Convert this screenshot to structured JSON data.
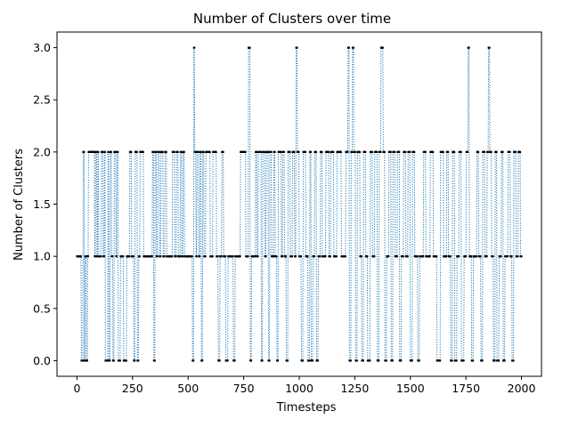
{
  "chart_data": {
    "type": "line",
    "title": "Number of Clusters over time",
    "xlabel": "Timesteps",
    "ylabel": "Number of Clusters",
    "xlim": [
      -90,
      2090
    ],
    "ylim": [
      -0.15,
      3.15
    ],
    "xticks": [
      0,
      250,
      500,
      750,
      1000,
      1250,
      1500,
      1750,
      2000
    ],
    "yticks": [
      0.0,
      0.5,
      1.0,
      1.5,
      2.0,
      2.5,
      3.0
    ],
    "ytick_labels": [
      "0.0",
      "0.5",
      "1.0",
      "1.5",
      "2.0",
      "2.5",
      "3.0"
    ],
    "line_style": "dotted",
    "line_color": "#1f77b4",
    "marker_color": "#000000",
    "grid": false,
    "series": [
      {
        "values_note": "cluster count per timestep, approximated from plot",
        "segments": [
          [
            0,
            20,
            1
          ],
          [
            20,
            28,
            0
          ],
          [
            28,
            33,
            2
          ],
          [
            33,
            37,
            0
          ],
          [
            37,
            42,
            1
          ],
          [
            42,
            48,
            0
          ],
          [
            48,
            52,
            1
          ],
          [
            52,
            80,
            2
          ],
          [
            80,
            84,
            1
          ],
          [
            84,
            90,
            2
          ],
          [
            90,
            94,
            1
          ],
          [
            94,
            98,
            2
          ],
          [
            98,
            110,
            1
          ],
          [
            110,
            118,
            2
          ],
          [
            118,
            124,
            1
          ],
          [
            124,
            128,
            2
          ],
          [
            128,
            140,
            0
          ],
          [
            140,
            144,
            2
          ],
          [
            144,
            150,
            0
          ],
          [
            150,
            156,
            2
          ],
          [
            156,
            162,
            1
          ],
          [
            162,
            168,
            0
          ],
          [
            168,
            176,
            2
          ],
          [
            176,
            180,
            1
          ],
          [
            180,
            186,
            2
          ],
          [
            186,
            196,
            0
          ],
          [
            196,
            210,
            1
          ],
          [
            210,
            224,
            0
          ],
          [
            224,
            238,
            1
          ],
          [
            238,
            246,
            2
          ],
          [
            246,
            256,
            1
          ],
          [
            256,
            262,
            0
          ],
          [
            262,
            272,
            2
          ],
          [
            272,
            278,
            0
          ],
          [
            278,
            284,
            1
          ],
          [
            284,
            300,
            2
          ],
          [
            300,
            340,
            1
          ],
          [
            340,
            346,
            2
          ],
          [
            346,
            352,
            0
          ],
          [
            352,
            358,
            2
          ],
          [
            358,
            364,
            1
          ],
          [
            364,
            372,
            2
          ],
          [
            372,
            378,
            1
          ],
          [
            378,
            388,
            2
          ],
          [
            388,
            396,
            1
          ],
          [
            396,
            404,
            2
          ],
          [
            404,
            430,
            1
          ],
          [
            430,
            440,
            2
          ],
          [
            440,
            448,
            1
          ],
          [
            448,
            456,
            2
          ],
          [
            456,
            466,
            1
          ],
          [
            466,
            472,
            2
          ],
          [
            472,
            478,
            1
          ],
          [
            478,
            484,
            2
          ],
          [
            484,
            490,
            1
          ],
          [
            490,
            520,
            1
          ],
          [
            520,
            526,
            0
          ],
          [
            526,
            530,
            3
          ],
          [
            530,
            536,
            2
          ],
          [
            536,
            540,
            1
          ],
          [
            540,
            548,
            2
          ],
          [
            548,
            554,
            1
          ],
          [
            554,
            560,
            2
          ],
          [
            560,
            566,
            0
          ],
          [
            566,
            572,
            2
          ],
          [
            572,
            580,
            1
          ],
          [
            580,
            600,
            2
          ],
          [
            600,
            612,
            1
          ],
          [
            612,
            628,
            2
          ],
          [
            628,
            636,
            1
          ],
          [
            636,
            644,
            0
          ],
          [
            644,
            652,
            1
          ],
          [
            652,
            660,
            2
          ],
          [
            660,
            670,
            1
          ],
          [
            670,
            680,
            0
          ],
          [
            680,
            704,
            1
          ],
          [
            704,
            712,
            0
          ],
          [
            712,
            736,
            1
          ],
          [
            736,
            760,
            2
          ],
          [
            760,
            772,
            1
          ],
          [
            772,
            780,
            3
          ],
          [
            780,
            786,
            0
          ],
          [
            786,
            804,
            1
          ],
          [
            804,
            810,
            2
          ],
          [
            810,
            816,
            1
          ],
          [
            816,
            830,
            2
          ],
          [
            830,
            836,
            0
          ],
          [
            836,
            846,
            2
          ],
          [
            846,
            852,
            1
          ],
          [
            852,
            862,
            2
          ],
          [
            862,
            868,
            0
          ],
          [
            868,
            876,
            2
          ],
          [
            876,
            886,
            1
          ],
          [
            886,
            892,
            2
          ],
          [
            892,
            900,
            1
          ],
          [
            900,
            906,
            0
          ],
          [
            906,
            920,
            2
          ],
          [
            920,
            926,
            1
          ],
          [
            926,
            934,
            2
          ],
          [
            934,
            942,
            1
          ],
          [
            942,
            950,
            0
          ],
          [
            950,
            960,
            2
          ],
          [
            960,
            970,
            1
          ],
          [
            970,
            980,
            2
          ],
          [
            980,
            986,
            1
          ],
          [
            986,
            992,
            3
          ],
          [
            992,
            1000,
            2
          ],
          [
            1000,
            1010,
            1
          ],
          [
            1010,
            1018,
            0
          ],
          [
            1018,
            1030,
            2
          ],
          [
            1030,
            1040,
            1
          ],
          [
            1040,
            1048,
            0
          ],
          [
            1048,
            1054,
            2
          ],
          [
            1054,
            1062,
            0
          ],
          [
            1062,
            1070,
            1
          ],
          [
            1070,
            1078,
            2
          ],
          [
            1078,
            1086,
            0
          ],
          [
            1086,
            1096,
            1
          ],
          [
            1096,
            1104,
            2
          ],
          [
            1104,
            1120,
            1
          ],
          [
            1120,
            1134,
            2
          ],
          [
            1134,
            1142,
            1
          ],
          [
            1142,
            1156,
            2
          ],
          [
            1156,
            1170,
            1
          ],
          [
            1170,
            1190,
            2
          ],
          [
            1190,
            1210,
            1
          ],
          [
            1210,
            1220,
            2
          ],
          [
            1220,
            1226,
            3
          ],
          [
            1226,
            1234,
            0
          ],
          [
            1234,
            1240,
            2
          ],
          [
            1240,
            1246,
            3
          ],
          [
            1246,
            1254,
            2
          ],
          [
            1254,
            1262,
            0
          ],
          [
            1262,
            1274,
            2
          ],
          [
            1274,
            1282,
            1
          ],
          [
            1282,
            1290,
            0
          ],
          [
            1290,
            1300,
            2
          ],
          [
            1300,
            1308,
            1
          ],
          [
            1308,
            1320,
            0
          ],
          [
            1320,
            1330,
            2
          ],
          [
            1330,
            1340,
            1
          ],
          [
            1340,
            1352,
            2
          ],
          [
            1352,
            1360,
            0
          ],
          [
            1360,
            1368,
            2
          ],
          [
            1368,
            1378,
            3
          ],
          [
            1378,
            1386,
            2
          ],
          [
            1386,
            1394,
            0
          ],
          [
            1394,
            1404,
            1
          ],
          [
            1404,
            1414,
            2
          ],
          [
            1414,
            1422,
            0
          ],
          [
            1422,
            1432,
            2
          ],
          [
            1432,
            1442,
            1
          ],
          [
            1442,
            1452,
            2
          ],
          [
            1452,
            1460,
            0
          ],
          [
            1460,
            1470,
            1
          ],
          [
            1470,
            1480,
            2
          ],
          [
            1480,
            1490,
            1
          ],
          [
            1490,
            1500,
            2
          ],
          [
            1500,
            1510,
            0
          ],
          [
            1510,
            1520,
            2
          ],
          [
            1520,
            1534,
            1
          ],
          [
            1534,
            1542,
            0
          ],
          [
            1542,
            1560,
            1
          ],
          [
            1560,
            1570,
            2
          ],
          [
            1570,
            1590,
            1
          ],
          [
            1590,
            1604,
            2
          ],
          [
            1604,
            1620,
            1
          ],
          [
            1620,
            1636,
            0
          ],
          [
            1636,
            1650,
            2
          ],
          [
            1650,
            1664,
            1
          ],
          [
            1664,
            1672,
            2
          ],
          [
            1672,
            1682,
            1
          ],
          [
            1682,
            1690,
            0
          ],
          [
            1690,
            1700,
            2
          ],
          [
            1700,
            1710,
            0
          ],
          [
            1710,
            1720,
            1
          ],
          [
            1720,
            1730,
            2
          ],
          [
            1730,
            1742,
            0
          ],
          [
            1742,
            1752,
            1
          ],
          [
            1752,
            1760,
            2
          ],
          [
            1760,
            1766,
            3
          ],
          [
            1766,
            1776,
            1
          ],
          [
            1776,
            1784,
            0
          ],
          [
            1784,
            1800,
            1
          ],
          [
            1800,
            1808,
            2
          ],
          [
            1808,
            1818,
            1
          ],
          [
            1818,
            1826,
            0
          ],
          [
            1826,
            1836,
            2
          ],
          [
            1836,
            1846,
            1
          ],
          [
            1846,
            1852,
            2
          ],
          [
            1852,
            1858,
            3
          ],
          [
            1858,
            1866,
            2
          ],
          [
            1866,
            1874,
            1
          ],
          [
            1874,
            1882,
            0
          ],
          [
            1882,
            1890,
            2
          ],
          [
            1890,
            1900,
            0
          ],
          [
            1900,
            1910,
            1
          ],
          [
            1910,
            1918,
            2
          ],
          [
            1918,
            1926,
            0
          ],
          [
            1926,
            1940,
            1
          ],
          [
            1940,
            1950,
            2
          ],
          [
            1950,
            1958,
            1
          ],
          [
            1958,
            1966,
            0
          ],
          [
            1966,
            1976,
            2
          ],
          [
            1976,
            1986,
            1
          ],
          [
            1986,
            1996,
            2
          ],
          [
            1996,
            2000,
            1
          ]
        ]
      }
    ]
  }
}
